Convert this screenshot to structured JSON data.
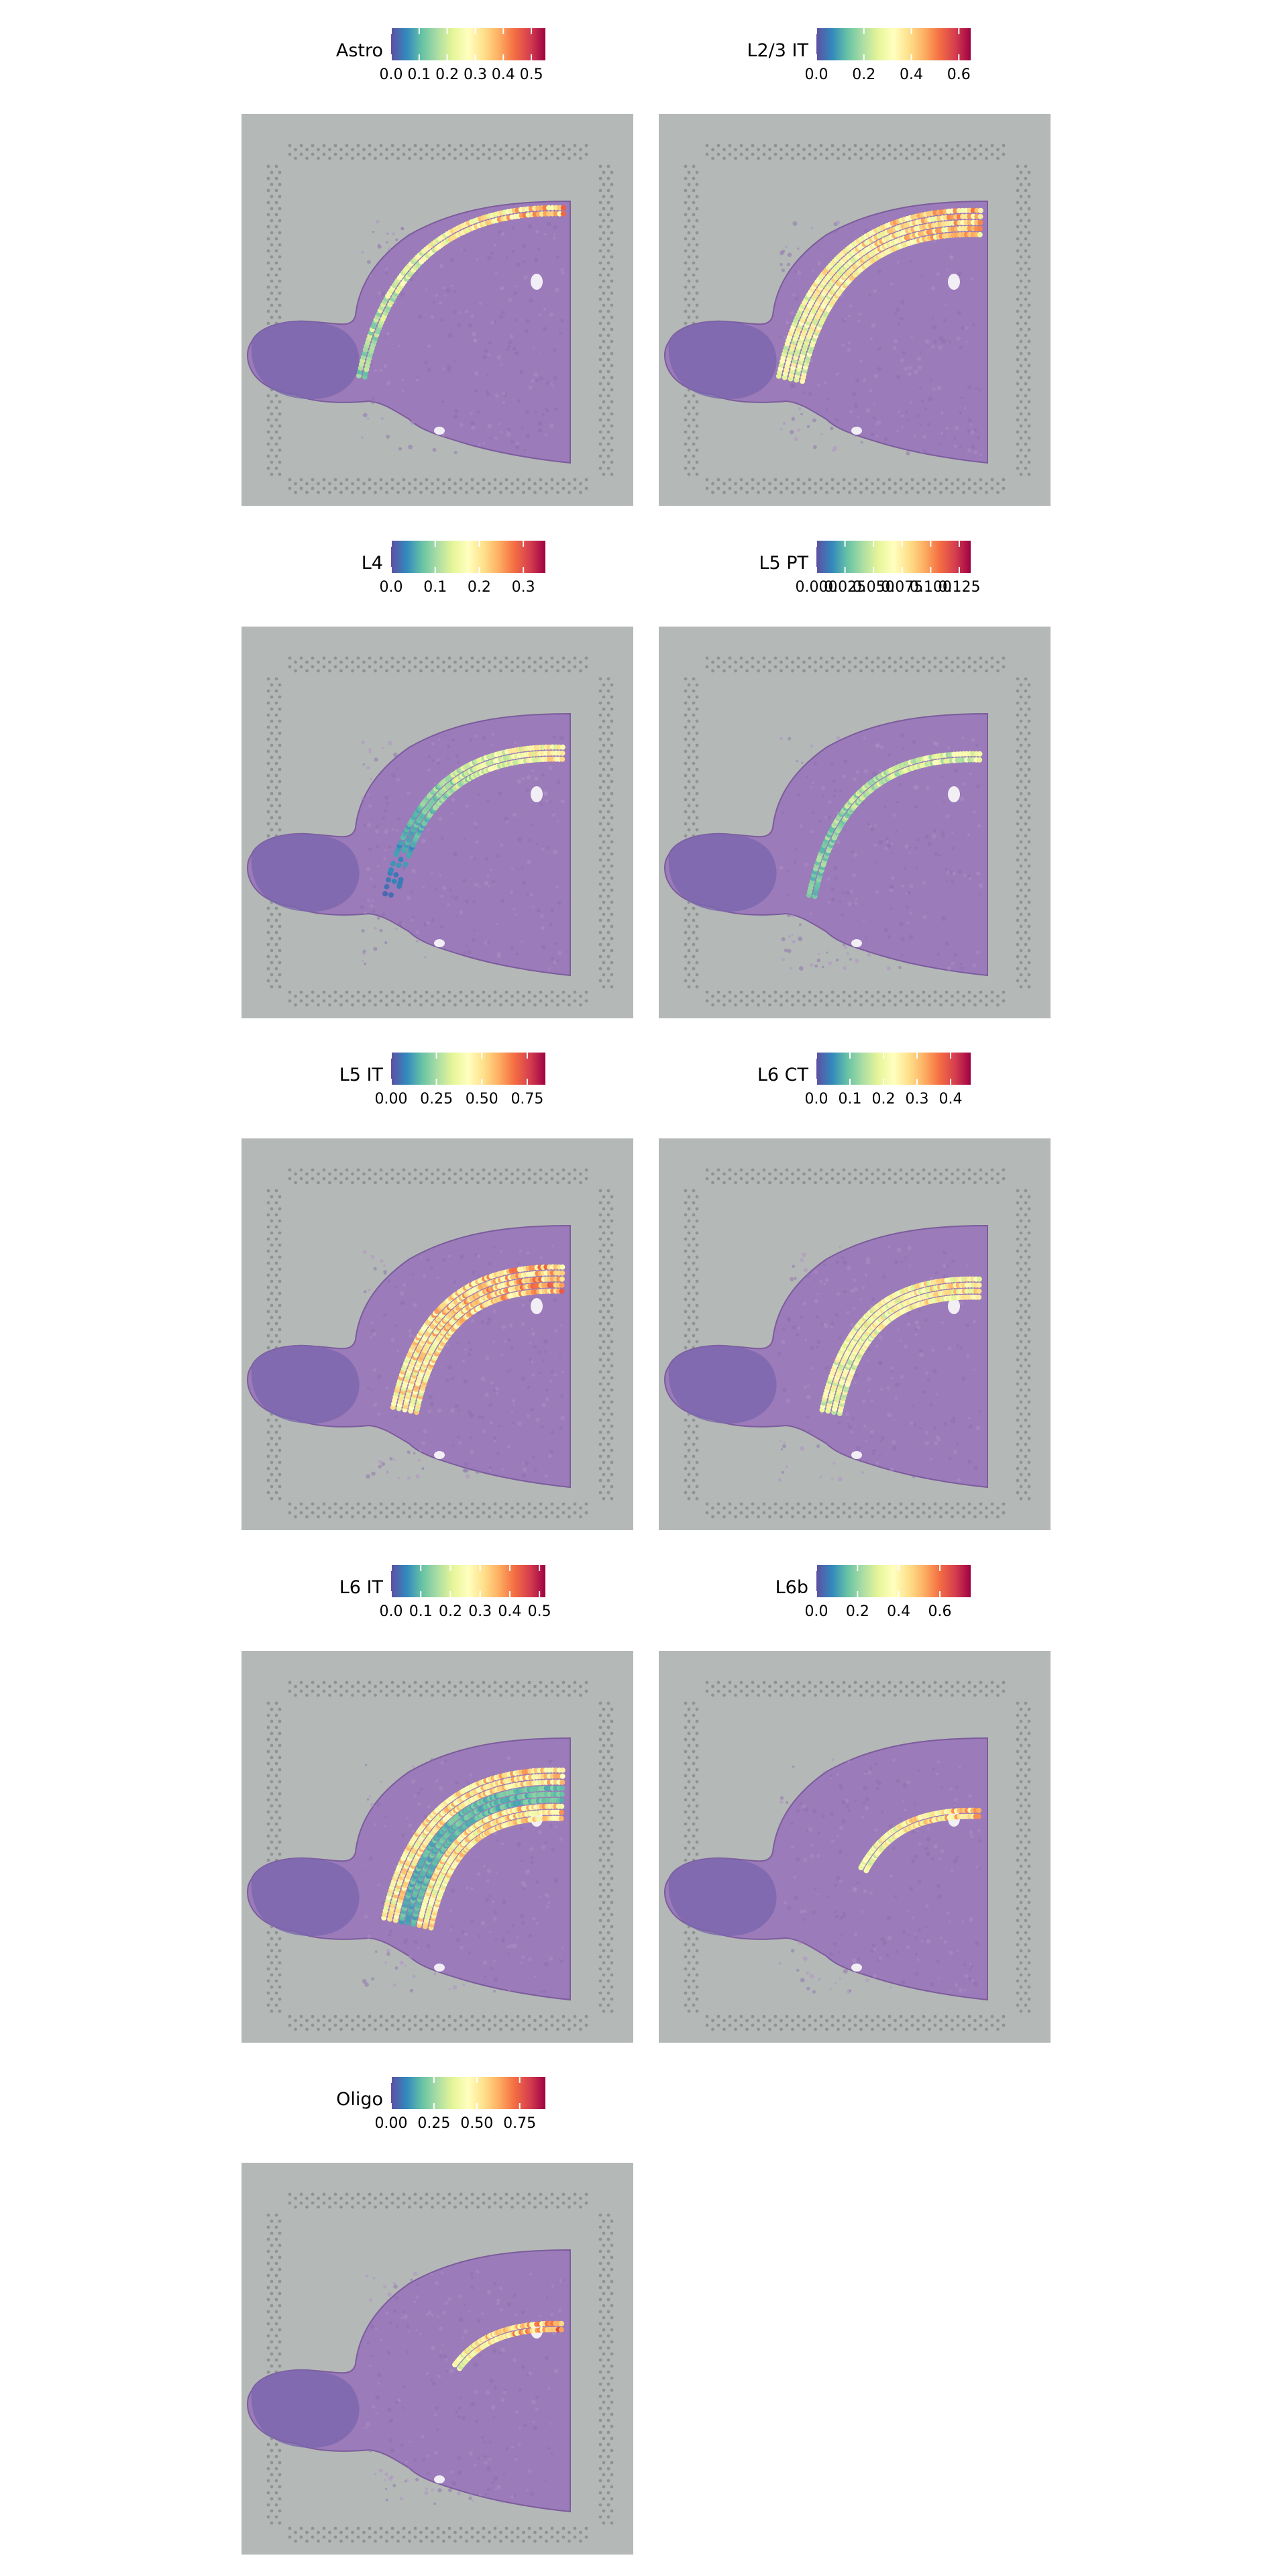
{
  "colors": {
    "background": "#ffffff",
    "panel_background": "#b4b8b6",
    "palette_spectral_r": [
      "#5e4fa2",
      "#3288bd",
      "#66c2a5",
      "#abdda4",
      "#e6f598",
      "#ffffbf",
      "#fee08b",
      "#fdae61",
      "#f46d43",
      "#d53e4f",
      "#9e0142"
    ]
  },
  "chart_data": [
    {
      "type": "heatmap",
      "title": "Astro",
      "legend": {
        "title": "Astro",
        "range": [
          0,
          0.55
        ],
        "ticks": [
          "0.0",
          "0.1",
          "0.2",
          "0.3",
          "0.4",
          "0.5"
        ],
        "tick_values": [
          0,
          0.1,
          0.2,
          0.3,
          0.4,
          0.5
        ]
      },
      "pattern": "thin outer cortical surface band (layer 1)"
    },
    {
      "type": "heatmap",
      "title": "L2/3 IT",
      "legend": {
        "title": "L2/3 IT",
        "range": [
          0,
          0.65
        ],
        "ticks": [
          "0.0",
          "0.2",
          "0.4",
          "0.6"
        ],
        "tick_values": [
          0,
          0.2,
          0.4,
          0.6
        ]
      },
      "pattern": "broad superficial cortical band"
    },
    {
      "type": "heatmap",
      "title": "L4",
      "legend": {
        "title": "L4",
        "range": [
          0,
          0.35
        ],
        "ticks": [
          "0.0",
          "0.1",
          "0.2",
          "0.3"
        ],
        "tick_values": [
          0,
          0.1,
          0.2,
          0.3
        ]
      },
      "pattern": "thin middle cortical band, strongest dorsally"
    },
    {
      "type": "heatmap",
      "title": "L5 PT",
      "legend": {
        "title": "L5 PT",
        "range": [
          0,
          0.135
        ],
        "ticks": [
          "0.000",
          "0.025",
          "0.050",
          "0.075",
          "0.100",
          "0.125"
        ],
        "tick_values": [
          0,
          0.025,
          0.05,
          0.075,
          0.1,
          0.125
        ]
      },
      "pattern": "sparse thin mid-deep band"
    },
    {
      "type": "heatmap",
      "title": "L5 IT",
      "legend": {
        "title": "L5 IT",
        "range": [
          0,
          0.85
        ],
        "ticks": [
          "0.00",
          "0.25",
          "0.50",
          "0.75"
        ],
        "tick_values": [
          0,
          0.25,
          0.5,
          0.75
        ]
      },
      "pattern": "strong mid-deep cortical band"
    },
    {
      "type": "heatmap",
      "title": "L6 CT",
      "legend": {
        "title": "L6 CT",
        "range": [
          0,
          0.46
        ],
        "ticks": [
          "0.0",
          "0.1",
          "0.2",
          "0.3",
          "0.4"
        ],
        "tick_values": [
          0,
          0.1,
          0.2,
          0.3,
          0.4
        ]
      },
      "pattern": "deep cortical band"
    },
    {
      "type": "heatmap",
      "title": "L6 IT",
      "legend": {
        "title": "L6 IT",
        "range": [
          0,
          0.52
        ],
        "ticks": [
          "0.0",
          "0.1",
          "0.2",
          "0.3",
          "0.4",
          "0.5"
        ],
        "tick_values": [
          0,
          0.1,
          0.2,
          0.3,
          0.4,
          0.5
        ]
      },
      "pattern": "wide cortical band with lighter core"
    },
    {
      "type": "heatmap",
      "title": "L6b",
      "legend": {
        "title": "L6b",
        "range": [
          0,
          0.75
        ],
        "ticks": [
          "0.0",
          "0.2",
          "0.4",
          "0.6"
        ],
        "tick_values": [
          0,
          0.2,
          0.4,
          0.6
        ]
      },
      "pattern": "thin deepest cortical band"
    },
    {
      "type": "heatmap",
      "title": "Oligo",
      "legend": {
        "title": "Oligo",
        "range": [
          0,
          0.9
        ],
        "ticks": [
          "0.00",
          "0.25",
          "0.50",
          "0.75"
        ],
        "tick_values": [
          0,
          0.25,
          0.5,
          0.75
        ]
      },
      "pattern": "white-matter tract below cortex"
    }
  ]
}
